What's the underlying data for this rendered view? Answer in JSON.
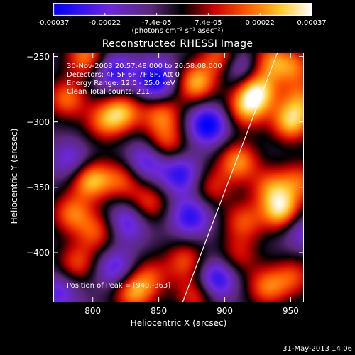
{
  "colorbar": {
    "ticks": [
      "-0.00037",
      "-0.00022",
      "-7.4e-05",
      "7.4e-05",
      "0.00022",
      "0.00037"
    ],
    "units": "(photons cm⁻² s⁻¹ asec⁻²)"
  },
  "chart_data": {
    "type": "heatmap",
    "title": "Reconstructed RHESSI Image",
    "xlabel": "Heliocentric X (arcsec)",
    "ylabel": "Heliocentric Y (arcsec)",
    "xlim": [
      770,
      960
    ],
    "ylim": [
      -438,
      -247
    ],
    "x_ticks": [
      "800",
      "850",
      "900",
      "950"
    ],
    "y_ticks": [
      "-250",
      "-300",
      "-350",
      "-400"
    ],
    "x_tick_values": [
      800,
      850,
      900,
      950
    ],
    "y_tick_values": [
      -250,
      -300,
      -350,
      -400
    ],
    "color_range": [
      -0.00037,
      0.00037
    ],
    "annotations": [
      "30-Nov-2003 20:57:48.000 to 20:58:08.000",
      "Detectors: 4F 5F 6F 7F 8F, Att 0",
      "Energy Range: 12.0 - 25.0 keV",
      "Clean    Total counts: 211."
    ],
    "peak_label": "Position of Peak = [940,-363]",
    "peak": [
      940,
      -363
    ],
    "limb_line": [
      [
        868,
        -438
      ],
      [
        940,
        -247
      ]
    ],
    "blobs": [
      {
        "x": 795,
        "y": -250,
        "v": 0.8
      },
      {
        "x": 815,
        "y": -262,
        "v": -0.7
      },
      {
        "x": 848,
        "y": -268,
        "v": -0.9
      },
      {
        "x": 878,
        "y": -270,
        "v": 0.9
      },
      {
        "x": 897,
        "y": -250,
        "v": 0.7
      },
      {
        "x": 912,
        "y": -258,
        "v": -0.6
      },
      {
        "x": 934,
        "y": -253,
        "v": 0.7
      },
      {
        "x": 953,
        "y": -258,
        "v": 0.6
      },
      {
        "x": 780,
        "y": -282,
        "v": 0.7
      },
      {
        "x": 808,
        "y": -300,
        "v": 0.6
      },
      {
        "x": 822,
        "y": -292,
        "v": 0.8
      },
      {
        "x": 852,
        "y": -294,
        "v": 0.7
      },
      {
        "x": 856,
        "y": -316,
        "v": 0.6
      },
      {
        "x": 887,
        "y": -302,
        "v": -0.9
      },
      {
        "x": 916,
        "y": -290,
        "v": 0.75
      },
      {
        "x": 924,
        "y": -276,
        "v": 1.0
      },
      {
        "x": 950,
        "y": -300,
        "v": 0.9
      },
      {
        "x": 958,
        "y": -283,
        "v": 0.6
      },
      {
        "x": 784,
        "y": -330,
        "v": -0.5
      },
      {
        "x": 798,
        "y": -344,
        "v": 0.95
      },
      {
        "x": 822,
        "y": -344,
        "v": 0.6
      },
      {
        "x": 840,
        "y": -330,
        "v": -0.6
      },
      {
        "x": 866,
        "y": -340,
        "v": -0.7
      },
      {
        "x": 890,
        "y": -350,
        "v": 0.5
      },
      {
        "x": 910,
        "y": -330,
        "v": 0.8
      },
      {
        "x": 935,
        "y": -350,
        "v": 0.65
      },
      {
        "x": 957,
        "y": -345,
        "v": 0.6
      },
      {
        "x": 943,
        "y": -368,
        "v": 1.0
      },
      {
        "x": 784,
        "y": -370,
        "v": 0.7
      },
      {
        "x": 803,
        "y": -384,
        "v": 0.6
      },
      {
        "x": 826,
        "y": -376,
        "v": -0.6
      },
      {
        "x": 842,
        "y": -362,
        "v": 0.6
      },
      {
        "x": 874,
        "y": -372,
        "v": -0.7
      },
      {
        "x": 914,
        "y": -376,
        "v": 0.6
      },
      {
        "x": 958,
        "y": -382,
        "v": -0.5
      },
      {
        "x": 788,
        "y": -408,
        "v": 0.6
      },
      {
        "x": 817,
        "y": -412,
        "v": -0.6
      },
      {
        "x": 843,
        "y": -418,
        "v": 0.5
      },
      {
        "x": 870,
        "y": -406,
        "v": 0.6
      },
      {
        "x": 893,
        "y": -420,
        "v": -0.8
      },
      {
        "x": 910,
        "y": -402,
        "v": 0.45
      },
      {
        "x": 932,
        "y": -426,
        "v": 0.7
      },
      {
        "x": 952,
        "y": -418,
        "v": 0.55
      },
      {
        "x": 830,
        "y": -430,
        "v": 0.8
      },
      {
        "x": 878,
        "y": -432,
        "v": 0.6
      },
      {
        "x": 774,
        "y": -430,
        "v": -0.5
      }
    ]
  },
  "footer": {
    "date": "31-May-2013 14:06"
  }
}
